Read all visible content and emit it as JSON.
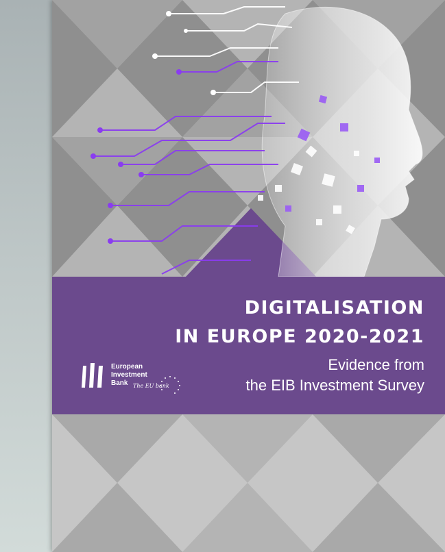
{
  "cover": {
    "title_line_1": "DIGITALISATION",
    "title_line_2": "IN EUROPE 2020-2021",
    "subtitle_line_1": "Evidence from",
    "subtitle_line_2": "the EIB Investment Survey"
  },
  "logo": {
    "word_1": "European",
    "word_2": "Investment",
    "word_3": "Bank",
    "tagline": "The EU bank",
    "icon": "eib-logo-icon"
  },
  "colors": {
    "band": "#6b4a8d",
    "accent_violet": "#8a3cf0",
    "pattern_light": "#c4c4c4",
    "pattern_dark": "#8c8c8c"
  },
  "illustration": {
    "icon": "digital-head-circuit-icon"
  }
}
